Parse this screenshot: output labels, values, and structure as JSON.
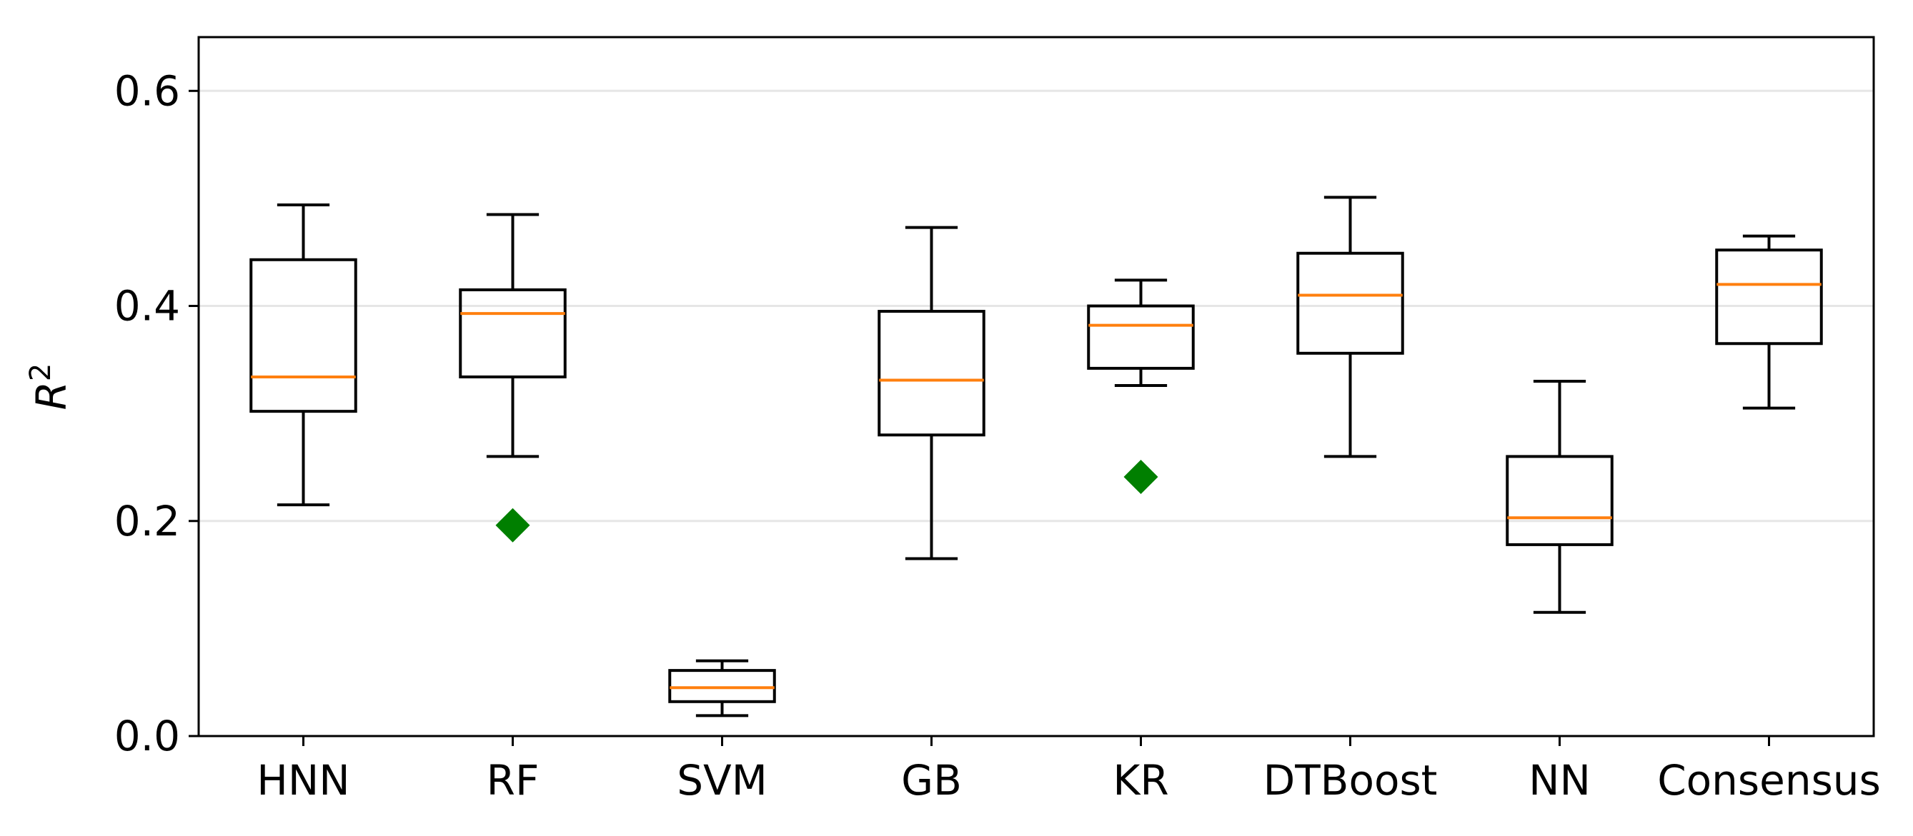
{
  "chart_data": {
    "type": "box",
    "title": "",
    "xlabel": "",
    "ylabel": "R",
    "ylabel_superscript": "2",
    "ylim": [
      0.0,
      0.65
    ],
    "yticks": [
      {
        "value": 0.0,
        "label": "0.0"
      },
      {
        "value": 0.2,
        "label": "0.2"
      },
      {
        "value": 0.4,
        "label": "0.4"
      },
      {
        "value": 0.6,
        "label": "0.6"
      }
    ],
    "grid": "horizontal",
    "categories": [
      "HNN",
      "RF",
      "SVM",
      "GB",
      "KR",
      "DTBoost",
      "NN",
      "Consensus"
    ],
    "boxes": [
      {
        "name": "HNN",
        "whisker_low": 0.215,
        "q1": 0.302,
        "median": 0.334,
        "q3": 0.443,
        "whisker_high": 0.494,
        "outliers": []
      },
      {
        "name": "RF",
        "whisker_low": 0.26,
        "q1": 0.334,
        "median": 0.393,
        "q3": 0.415,
        "whisker_high": 0.485,
        "outliers": [
          0.196
        ]
      },
      {
        "name": "SVM",
        "whisker_low": 0.019,
        "q1": 0.032,
        "median": 0.045,
        "q3": 0.061,
        "whisker_high": 0.07,
        "outliers": []
      },
      {
        "name": "GB",
        "whisker_low": 0.165,
        "q1": 0.28,
        "median": 0.331,
        "q3": 0.395,
        "whisker_high": 0.473,
        "outliers": []
      },
      {
        "name": "KR",
        "whisker_low": 0.326,
        "q1": 0.342,
        "median": 0.382,
        "q3": 0.4,
        "whisker_high": 0.424,
        "outliers": [
          0.241
        ]
      },
      {
        "name": "DTBoost",
        "whisker_low": 0.26,
        "q1": 0.356,
        "median": 0.41,
        "q3": 0.449,
        "whisker_high": 0.501,
        "outliers": []
      },
      {
        "name": "NN",
        "whisker_low": 0.115,
        "q1": 0.178,
        "median": 0.203,
        "q3": 0.26,
        "whisker_high": 0.33,
        "outliers": []
      },
      {
        "name": "Consensus",
        "whisker_low": 0.305,
        "q1": 0.365,
        "median": 0.42,
        "q3": 0.452,
        "whisker_high": 0.465,
        "outliers": []
      }
    ],
    "colors": {
      "box": "#000000",
      "median": "#ff7f0e",
      "outlier": "#007f00",
      "grid": "#e6e6e6"
    }
  }
}
